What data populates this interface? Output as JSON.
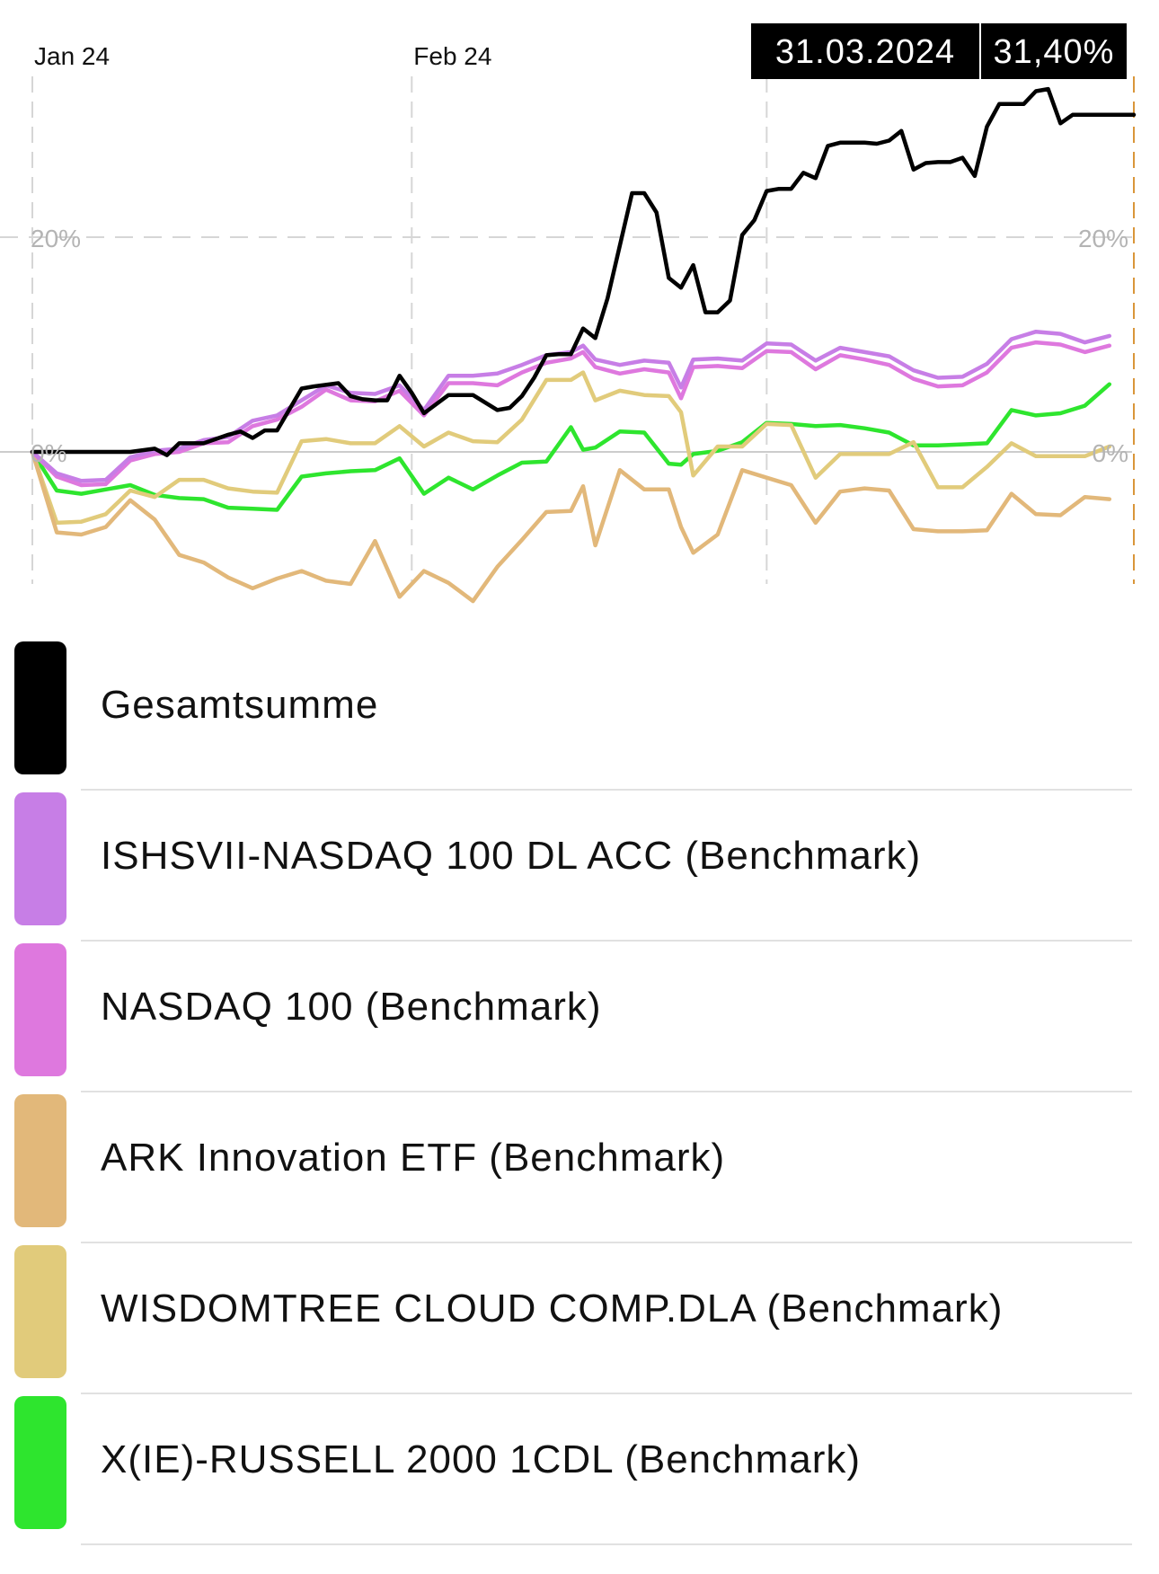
{
  "chart_data": {
    "type": "line",
    "xlim": [
      0,
      90
    ],
    "ylim": [
      -13,
      40
    ],
    "x_ticks": [
      {
        "x": 0,
        "label": "Jan 24"
      },
      {
        "x": 31,
        "label": "Feb 24"
      },
      {
        "x": 60,
        "label": ""
      },
      {
        "x": 90,
        "label": ""
      }
    ],
    "y_ticks": [
      {
        "y": 20,
        "label": "20%"
      },
      {
        "y": 0,
        "label": "0%"
      }
    ],
    "grid": true,
    "tooltip": {
      "date": "31.03.2024",
      "value": "31,40%"
    },
    "series": [
      {
        "name": "Gesamtsumme",
        "color": "#000000",
        "x": [
          0,
          8,
          10,
          11,
          12,
          14,
          16,
          17,
          18,
          19,
          20,
          22,
          23,
          25,
          26,
          27,
          28,
          29,
          30,
          31,
          32,
          34,
          35,
          36,
          38,
          39,
          40,
          41,
          42,
          43,
          44,
          45,
          46,
          47,
          49,
          50,
          51,
          52,
          53,
          54,
          55,
          56,
          57,
          58,
          59,
          60,
          61,
          62,
          63,
          64,
          65,
          66,
          67,
          68,
          69,
          70,
          71,
          72,
          73,
          74,
          75,
          76,
          77,
          78,
          79,
          80,
          81,
          82,
          83,
          84,
          85,
          86,
          87,
          88,
          89,
          90
        ],
        "y": [
          0,
          0,
          0.3,
          -0.3,
          0.8,
          0.8,
          1.6,
          1.9,
          1.3,
          2,
          2,
          5.9,
          6.1,
          6.4,
          5.2,
          4.9,
          4.8,
          4.8,
          7.1,
          5.5,
          3.6,
          5.3,
          5.3,
          5.3,
          3.9,
          4.1,
          5.2,
          6.9,
          9.0,
          9.1,
          9.1,
          11.5,
          10.6,
          14.3,
          24.1,
          24.1,
          22.3,
          16.2,
          15.3,
          17.4,
          13.0,
          13.0,
          14.1,
          20.2,
          21.6,
          24.3,
          24.5,
          24.5,
          26.0,
          25.5,
          28.5,
          28.8,
          28.8,
          28.8,
          28.7,
          29.0,
          29.9,
          26.3,
          26.9,
          27.0,
          27.0,
          27.4,
          25.7,
          30.3,
          32.4,
          32.4,
          32.4,
          33.6,
          33.8,
          30.6,
          31.4,
          31.4,
          31.4,
          31.4,
          31.4,
          31.4
        ]
      },
      {
        "name": "ISHSVII-NASDAQ 100 DL ACC (Benchmark)",
        "color": "#c77ee6",
        "x": [
          0,
          2,
          4,
          6,
          8,
          10,
          12,
          14,
          16,
          18,
          20,
          22,
          24,
          26,
          28,
          30,
          32,
          34,
          36,
          38,
          40,
          42,
          44,
          45,
          46,
          48,
          50,
          52,
          53,
          54,
          56,
          58,
          60,
          62,
          64,
          66,
          68,
          70,
          72,
          74,
          76,
          78,
          80,
          82,
          84,
          86,
          88
        ],
        "y": [
          0,
          -2,
          -2.7,
          -2.6,
          -0.5,
          0.1,
          0.3,
          1.1,
          1.4,
          2.9,
          3.4,
          4.8,
          6.2,
          5.5,
          5.4,
          6.2,
          3.9,
          7.1,
          7.1,
          7.3,
          8.1,
          9.0,
          9.3,
          9.9,
          8.6,
          8.1,
          8.5,
          8.3,
          6.0,
          8.6,
          8.7,
          8.5,
          10.1,
          10.0,
          8.5,
          9.7,
          9.3,
          8.9,
          7.6,
          6.9,
          7.0,
          8.2,
          10.5,
          11.2,
          11.0,
          10.2,
          10.8
        ]
      },
      {
        "name": "NASDAQ 100 (Benchmark)",
        "color": "#de78de",
        "x": [
          0,
          2,
          4,
          6,
          8,
          10,
          12,
          14,
          16,
          18,
          20,
          22,
          24,
          26,
          28,
          30,
          32,
          34,
          36,
          38,
          40,
          42,
          44,
          45,
          46,
          48,
          50,
          52,
          53,
          54,
          56,
          58,
          60,
          62,
          64,
          66,
          68,
          70,
          72,
          74,
          76,
          78,
          80,
          82,
          84,
          86,
          88
        ],
        "y": [
          0,
          -2.3,
          -3.1,
          -3.0,
          -0.8,
          -0.2,
          0,
          0.8,
          0.9,
          2.4,
          3.0,
          4.2,
          5.8,
          4.8,
          4.7,
          5.7,
          3.4,
          6.4,
          6.4,
          6.2,
          7.4,
          8.3,
          8.7,
          9.3,
          7.9,
          7.3,
          7.7,
          7.4,
          5.0,
          7.9,
          8.0,
          7.8,
          9.4,
          9.3,
          7.7,
          9.0,
          8.6,
          8.1,
          6.8,
          6.1,
          6.2,
          7.4,
          9.7,
          10.2,
          10.0,
          9.3,
          9.9
        ]
      },
      {
        "name": "ARK Innovation ETF (Benchmark)",
        "color": "#e2b87a",
        "x": [
          0,
          2,
          4,
          6,
          8,
          10,
          12,
          14,
          16,
          18,
          20,
          22,
          24,
          26,
          28,
          30,
          32,
          34,
          36,
          38,
          40,
          42,
          44,
          45,
          46,
          48,
          50,
          52,
          53,
          54,
          56,
          58,
          60,
          62,
          64,
          66,
          68,
          70,
          72,
          74,
          76,
          78,
          80,
          82,
          84,
          86,
          88
        ],
        "y": [
          0,
          -7.5,
          -7.7,
          -7.0,
          -4.5,
          -6.3,
          -9.6,
          -10.3,
          -11.7,
          -12.7,
          -11.8,
          -11.1,
          -12.0,
          -12.3,
          -8.3,
          -13.5,
          -11.1,
          -12.2,
          -13.9,
          -10.7,
          -8.2,
          -5.6,
          -5.5,
          -3.2,
          -8.7,
          -1.7,
          -3.5,
          -3.5,
          -7.0,
          -9.4,
          -7.7,
          -1.7,
          -2.4,
          -3.1,
          -6.6,
          -3.7,
          -3.4,
          -3.6,
          -7.2,
          -7.4,
          -7.4,
          -7.3,
          -3.9,
          -5.8,
          -5.9,
          -4.2,
          -4.4
        ]
      },
      {
        "name": "WISDOMTREE CLOUD COMP.DLA (Benchmark)",
        "color": "#e1cb7b",
        "x": [
          0,
          2,
          4,
          6,
          8,
          10,
          12,
          14,
          16,
          18,
          20,
          22,
          24,
          26,
          28,
          30,
          32,
          34,
          36,
          38,
          40,
          42,
          44,
          45,
          46,
          48,
          50,
          52,
          53,
          54,
          56,
          58,
          60,
          62,
          64,
          66,
          68,
          70,
          72,
          74,
          76,
          78,
          80,
          82,
          84,
          86,
          88
        ],
        "y": [
          0,
          -6.6,
          -6.5,
          -5.8,
          -3.6,
          -4.2,
          -2.6,
          -2.6,
          -3.4,
          -3.7,
          -3.8,
          1.0,
          1.2,
          0.8,
          0.8,
          2.4,
          0.5,
          1.8,
          1.0,
          0.9,
          3.0,
          6.7,
          6.7,
          7.4,
          4.8,
          5.7,
          5.3,
          5.2,
          3.7,
          -2.2,
          0.5,
          0.5,
          2.6,
          2.5,
          -2.4,
          -0.2,
          -0.2,
          -0.2,
          0.9,
          -3.3,
          -3.3,
          -1.4,
          0.8,
          -0.4,
          -0.4,
          -0.4,
          0.5
        ]
      },
      {
        "name": "X(IE)-RUSSELL 2000 1CDL (Benchmark)",
        "color": "#2ee52e",
        "x": [
          0,
          2,
          4,
          6,
          8,
          10,
          12,
          14,
          16,
          18,
          20,
          22,
          24,
          26,
          28,
          30,
          32,
          34,
          36,
          38,
          40,
          42,
          44,
          45,
          46,
          48,
          50,
          52,
          53,
          54,
          56,
          58,
          60,
          62,
          64,
          66,
          68,
          70,
          72,
          74,
          76,
          78,
          80,
          82,
          84,
          86,
          88
        ],
        "y": [
          0,
          -3.6,
          -3.9,
          -3.5,
          -3.1,
          -4.0,
          -4.3,
          -4.4,
          -5.2,
          -5.3,
          -5.4,
          -2.3,
          -2.0,
          -1.8,
          -1.7,
          -0.6,
          -3.9,
          -2.4,
          -3.5,
          -2.2,
          -1.0,
          -0.9,
          2.3,
          0.2,
          0.4,
          1.9,
          1.8,
          -1.1,
          -1.2,
          -0.2,
          0.1,
          0.9,
          2.7,
          2.6,
          2.4,
          2.5,
          2.2,
          1.8,
          0.6,
          0.6,
          0.7,
          0.8,
          3.9,
          3.4,
          3.6,
          4.3,
          6.3
        ]
      }
    ]
  }
}
